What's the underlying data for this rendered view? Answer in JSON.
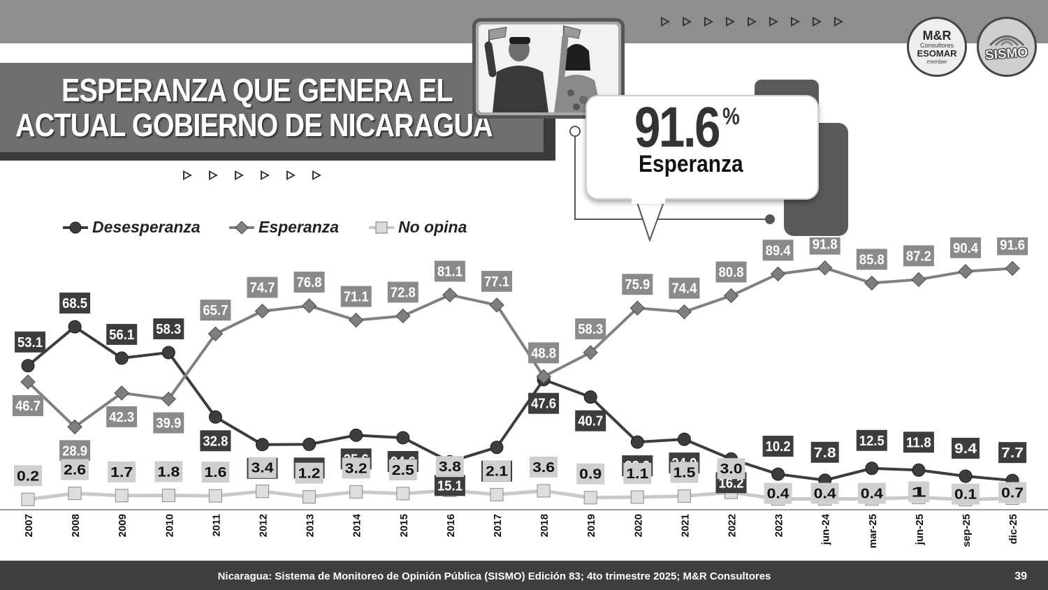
{
  "header": {
    "title_line1": "ESPERANZA QUE GENERA EL",
    "title_line2": "ACTUAL GOBIERNO DE NICARAGUA"
  },
  "callout": {
    "value": "91.6",
    "percent_sign": "%",
    "label": "Esperanza"
  },
  "logos": {
    "mr_main": "M&R",
    "mr_sub": "Consultores",
    "mr_assoc": "ESOMAR",
    "mr_member": "member",
    "sismo": "SISMO"
  },
  "chart_data": {
    "type": "line",
    "categories": [
      "2007",
      "2008",
      "2009",
      "2010",
      "2011",
      "2012",
      "2013",
      "2014",
      "2015",
      "2016",
      "2017",
      "2018",
      "2019",
      "2020",
      "2021",
      "2022",
      "2023",
      "jun-24",
      "mar-25",
      "jun-25",
      "sep-25",
      "dic-25"
    ],
    "series": [
      {
        "name": "Desesperanza",
        "values": [
          53.1,
          68.5,
          56.1,
          58.3,
          32.8,
          21.9,
          22.0,
          25.6,
          24.6,
          15.1,
          20.8,
          47.6,
          40.7,
          22.9,
          24.0,
          16.2,
          10.2,
          7.8,
          12.5,
          11.8,
          9.4,
          7.7
        ],
        "labels": [
          "53.1",
          "68.5",
          "56.1",
          "58.3",
          "32.8",
          "21.9",
          "22.0",
          "25.6",
          "24.6",
          "15.1",
          "20.8",
          "47.6",
          "40.7",
          "22.9",
          "24.0",
          "16.2",
          "10.2",
          "7.8",
          "12.5",
          "11.8",
          "9.4",
          "7.7"
        ]
      },
      {
        "name": "Esperanza",
        "values": [
          46.7,
          28.9,
          42.3,
          39.9,
          65.7,
          74.7,
          76.8,
          71.1,
          72.8,
          81.1,
          77.1,
          48.8,
          58.3,
          75.9,
          74.4,
          80.8,
          89.4,
          91.8,
          85.8,
          87.2,
          90.4,
          91.6
        ],
        "labels": [
          "46.7",
          "28.9",
          "42.3",
          "39.9",
          "65.7",
          "74.7",
          "76.8",
          "71.1",
          "72.8",
          "81.1",
          "77.1",
          "48.8",
          "58.3",
          "75.9",
          "74.4",
          "80.8",
          "89.4",
          "91.8",
          "85.8",
          "87.2",
          "90.4",
          "91.6"
        ]
      },
      {
        "name": "No opina",
        "values": [
          0.2,
          2.6,
          1.7,
          1.8,
          1.6,
          3.4,
          1.2,
          3.2,
          2.5,
          3.8,
          2.1,
          3.6,
          0.9,
          1.1,
          1.5,
          3.0,
          0.4,
          0.4,
          0.4,
          1,
          0.1,
          0.7
        ],
        "labels": [
          "0.2",
          "2.6",
          "1.7",
          "1.8",
          "1.6",
          "3.4",
          "1.2",
          "3.2",
          "2.5",
          "3.8",
          "2.1",
          "3.6",
          "0.9",
          "1.1",
          "1.5",
          "3.0",
          "0.4",
          "0.4",
          "0.4",
          "1",
          "0.1",
          "0.7"
        ]
      }
    ],
    "ylim": [
      0,
      100
    ],
    "grid": false,
    "legend_position": "top-left",
    "colors": {
      "Desesperanza": "#3d3d3d",
      "Esperanza": "#808080",
      "No opina": "#c9c9c9"
    }
  },
  "footer": {
    "source": "Nicaragua: Sistema de Monitoreo de Opinión Pública (SISMO) Edición 83; 4to trimestre 2025; M&R Consultores",
    "page": "39"
  }
}
